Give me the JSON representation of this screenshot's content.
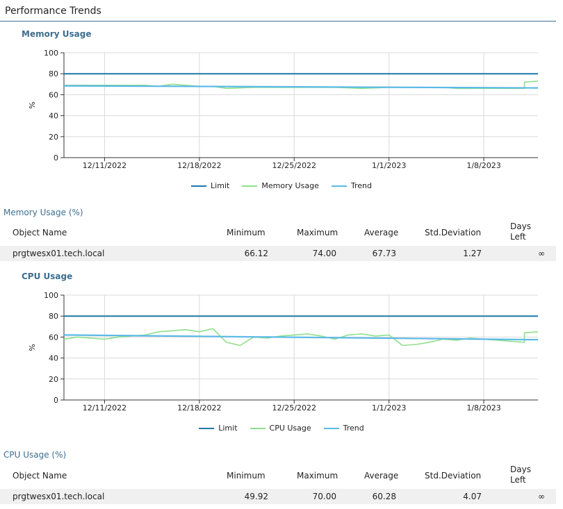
{
  "page_title": "Performance Trends",
  "memory_chart": {
    "title": "Memory Usage",
    "ylabel": "%"
  },
  "cpu_chart": {
    "title": "CPU Usage",
    "ylabel": "%"
  },
  "colors": {
    "limit": "#1f77a8",
    "usage": "#8de08a",
    "trend": "#5bb9e6",
    "grid": "#d9d9d9",
    "heading": "#3d6e8f",
    "row_bg": "#f0f0f0"
  },
  "legend": {
    "memory": [
      "Limit",
      "Memory Usage",
      "Trend"
    ],
    "cpu": [
      "Limit",
      "CPU Usage",
      "Trend"
    ]
  },
  "memory_table": {
    "title": "Memory Usage (%)",
    "headers": {
      "object_name": "Object Name",
      "minimum": "Minimum",
      "maximum": "Maximum",
      "average": "Average",
      "std_deviation": "Std.Deviation",
      "days_left": "Days Left"
    },
    "row": {
      "object_name": "prgtwesx01.tech.local",
      "minimum": "66.12",
      "maximum": "74.00",
      "average": "67.73",
      "std_deviation": "1.27",
      "days_left": "∞"
    }
  },
  "cpu_table": {
    "title": "CPU Usage (%)",
    "headers": {
      "object_name": "Object Name",
      "minimum": "Minimum",
      "maximum": "Maximum",
      "average": "Average",
      "std_deviation": "Std.Deviation",
      "days_left": "Days Left"
    },
    "row": {
      "object_name": "prgtwesx01.tech.local",
      "minimum": "49.92",
      "maximum": "70.00",
      "average": "60.28",
      "std_deviation": "4.07",
      "days_left": "∞"
    }
  },
  "chart_data": [
    {
      "type": "line",
      "title": "Memory Usage",
      "xlabel": "",
      "ylabel": "%",
      "ylim": [
        0,
        100
      ],
      "yticks": [
        0,
        20,
        40,
        60,
        80,
        100
      ],
      "xlim": [
        "2022-12-08",
        "2023-01-12"
      ],
      "xticks": [
        "12/11/2022",
        "12/18/2022",
        "12/25/2022",
        "1/1/2023",
        "1/8/2023"
      ],
      "grid": true,
      "legend_position": "bottom",
      "series": [
        {
          "name": "Limit",
          "x": [
            "2022-12-08",
            "2023-01-12"
          ],
          "values": [
            80,
            80
          ]
        },
        {
          "name": "Memory Usage",
          "x": [
            "2022-12-08",
            "2022-12-10",
            "2022-12-12",
            "2022-12-14",
            "2022-12-15",
            "2022-12-16",
            "2022-12-17",
            "2022-12-18",
            "2022-12-19",
            "2022-12-20",
            "2022-12-22",
            "2022-12-24",
            "2022-12-26",
            "2022-12-28",
            "2022-12-30",
            "2023-01-01",
            "2023-01-03",
            "2023-01-05",
            "2023-01-06",
            "2023-01-08",
            "2023-01-10",
            "2023-01-11",
            "2023-01-11",
            "2023-01-12"
          ],
          "values": [
            69,
            69,
            69,
            69,
            68,
            70,
            69,
            68,
            68,
            66,
            67,
            67,
            67,
            67,
            66,
            67,
            67,
            67,
            66,
            66,
            66,
            66,
            72,
            73
          ]
        },
        {
          "name": "Trend",
          "x": [
            "2022-12-08",
            "2023-01-12"
          ],
          "values": [
            68.5,
            66.5
          ]
        }
      ]
    },
    {
      "type": "line",
      "title": "CPU Usage",
      "xlabel": "",
      "ylabel": "%",
      "ylim": [
        0,
        100
      ],
      "yticks": [
        0,
        20,
        40,
        60,
        80,
        100
      ],
      "xlim": [
        "2022-12-08",
        "2023-01-12"
      ],
      "xticks": [
        "12/11/2022",
        "12/18/2022",
        "12/25/2022",
        "1/1/2023",
        "1/8/2023"
      ],
      "grid": true,
      "legend_position": "bottom",
      "series": [
        {
          "name": "Limit",
          "x": [
            "2022-12-08",
            "2023-01-12"
          ],
          "values": [
            80,
            80
          ]
        },
        {
          "name": "CPU Usage",
          "x": [
            "2022-12-08",
            "2022-12-09",
            "2022-12-10",
            "2022-12-11",
            "2022-12-12",
            "2022-12-13",
            "2022-12-14",
            "2022-12-15",
            "2022-12-16",
            "2022-12-17",
            "2022-12-18",
            "2022-12-19",
            "2022-12-20",
            "2022-12-21",
            "2022-12-22",
            "2022-12-23",
            "2022-12-24",
            "2022-12-25",
            "2022-12-26",
            "2022-12-27",
            "2022-12-28",
            "2022-12-29",
            "2022-12-30",
            "2022-12-31",
            "2023-01-01",
            "2023-01-02",
            "2023-01-03",
            "2023-01-04",
            "2023-01-05",
            "2023-01-06",
            "2023-01-07",
            "2023-01-08",
            "2023-01-09",
            "2023-01-10",
            "2023-01-11",
            "2023-01-11",
            "2023-01-12"
          ],
          "values": [
            58,
            60,
            59,
            58,
            60,
            61,
            62,
            65,
            66,
            67,
            65,
            68,
            55,
            52,
            60,
            59,
            61,
            62,
            63,
            61,
            58,
            62,
            63,
            61,
            62,
            52,
            53,
            55,
            58,
            57,
            59,
            58,
            57,
            56,
            55,
            64,
            65
          ]
        },
        {
          "name": "Trend",
          "x": [
            "2022-12-08",
            "2023-01-12"
          ],
          "values": [
            62,
            57.5
          ]
        }
      ]
    }
  ]
}
